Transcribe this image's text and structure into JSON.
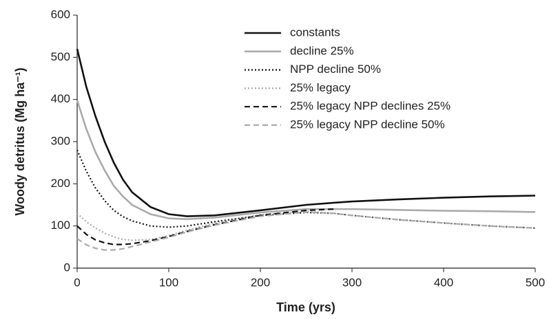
{
  "chart_data": {
    "type": "line",
    "x_label": "Time (yrs)",
    "y_label": "Woody detritus (Mg ha⁻¹)",
    "x": [
      0,
      10,
      20,
      30,
      40,
      50,
      60,
      80,
      100,
      120,
      150,
      200,
      250,
      280,
      300,
      350,
      400,
      450,
      500
    ],
    "series": [
      {
        "name": "constants",
        "color": "#111111",
        "dash": "solid",
        "values": [
          520,
          430,
          360,
          300,
          250,
          210,
          180,
          145,
          128,
          123,
          125,
          137,
          150,
          155,
          158,
          163,
          167,
          170,
          172
        ]
      },
      {
        "name": "decline 25%",
        "color": "#aaaaaa",
        "dash": "solid",
        "values": [
          398,
          330,
          275,
          232,
          195,
          170,
          150,
          128,
          118,
          116,
          120,
          132,
          140,
          140,
          140,
          138,
          136,
          135,
          133
        ]
      },
      {
        "name": "NPP decline 50%",
        "color": "#111111",
        "dash": "dotted",
        "values": [
          280,
          230,
          190,
          160,
          137,
          122,
          112,
          100,
          97,
          100,
          110,
          125,
          132,
          130,
          125,
          115,
          107,
          100,
          95
        ]
      },
      {
        "name": "25% legacy",
        "color": "#aaaaaa",
        "dash": "dotted",
        "values": [
          130,
          110,
          95,
          83,
          74,
          68,
          66,
          68,
          77,
          90,
          107,
          127,
          135,
          130,
          125,
          115,
          107,
          100,
          95
        ]
      },
      {
        "name": "25% legacy NPP declines 25%",
        "color": "#111111",
        "dash": "dashed",
        "values": [
          100,
          80,
          67,
          60,
          56,
          56,
          58,
          65,
          75,
          87,
          103,
          125,
          137,
          140,
          null,
          null,
          null,
          null,
          null
        ]
      },
      {
        "name": "25% legacy NPP decline 50%",
        "color": "#aaaaaa",
        "dash": "dashed",
        "values": [
          70,
          55,
          47,
          43,
          43,
          46,
          51,
          62,
          73,
          86,
          102,
          123,
          133,
          130,
          125,
          115,
          107,
          100,
          95
        ]
      }
    ],
    "xlim": [
      0,
      500
    ],
    "xticks": [
      0,
      100,
      200,
      300,
      400,
      500
    ],
    "ylim": [
      0,
      600
    ],
    "yticks": [
      0,
      100,
      200,
      300,
      400,
      500,
      600
    ],
    "legend": "top"
  }
}
